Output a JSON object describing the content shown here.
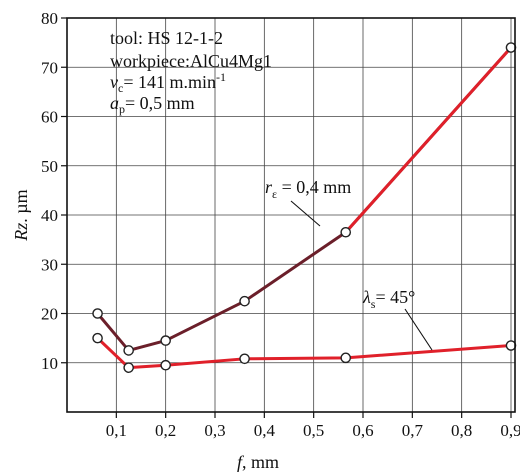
{
  "chart_data": {
    "type": "line",
    "xlabel_symbol": "f",
    "xlabel_unit": ", mm",
    "ylabel_symbol": "Rz",
    "ylabel_unit": ". µm",
    "xlim": [
      0,
      0.9
    ],
    "ylim": [
      0,
      80
    ],
    "x_ticks": [
      0.1,
      0.2,
      0.3,
      0.4,
      0.5,
      0.6,
      0.7,
      0.8,
      0.9
    ],
    "x_tick_labels": [
      "0,1",
      "0,2",
      "0,3",
      "0,4",
      "0,5",
      "0,6",
      "0,7",
      "0,8",
      "0,9"
    ],
    "y_ticks": [
      10,
      20,
      30,
      40,
      50,
      60,
      70,
      80
    ],
    "y_tick_labels": [
      "10",
      "20",
      "30",
      "40",
      "50",
      "60",
      "70",
      "80"
    ],
    "grid": true,
    "series": [
      {
        "color": "#6b1f2a",
        "highlight_color": "#e0202a",
        "x": [
          0.062,
          0.125,
          0.2,
          0.36,
          0.565,
          0.9
        ],
        "y": [
          20,
          12.5,
          14.5,
          22.5,
          36.5,
          74
        ]
      },
      {
        "color": "#e0202a",
        "x": [
          0.062,
          0.125,
          0.2,
          0.36,
          0.565,
          0.9
        ],
        "y": [
          15,
          9,
          9.5,
          10.8,
          11,
          13.5
        ]
      }
    ],
    "annotations": {
      "conditions": {
        "tool": "tool: HS 12-1-2",
        "workpiece": "workpiece:AlCu4Mg1",
        "vc_symbol": "v",
        "vc_sub": "c",
        "vc_value": "= 141 m.min",
        "vc_sup": "-1",
        "ap_symbol": "a",
        "ap_sub": "p",
        "ap_value": "= 0,5 mm"
      },
      "r_label_symbol": "r",
      "r_label_sub": "ε",
      "r_label_value": " = 0,4 mm",
      "lambda_label_symbol": "λ",
      "lambda_label_sub": "s",
      "lambda_label_value": "= 45°"
    }
  }
}
